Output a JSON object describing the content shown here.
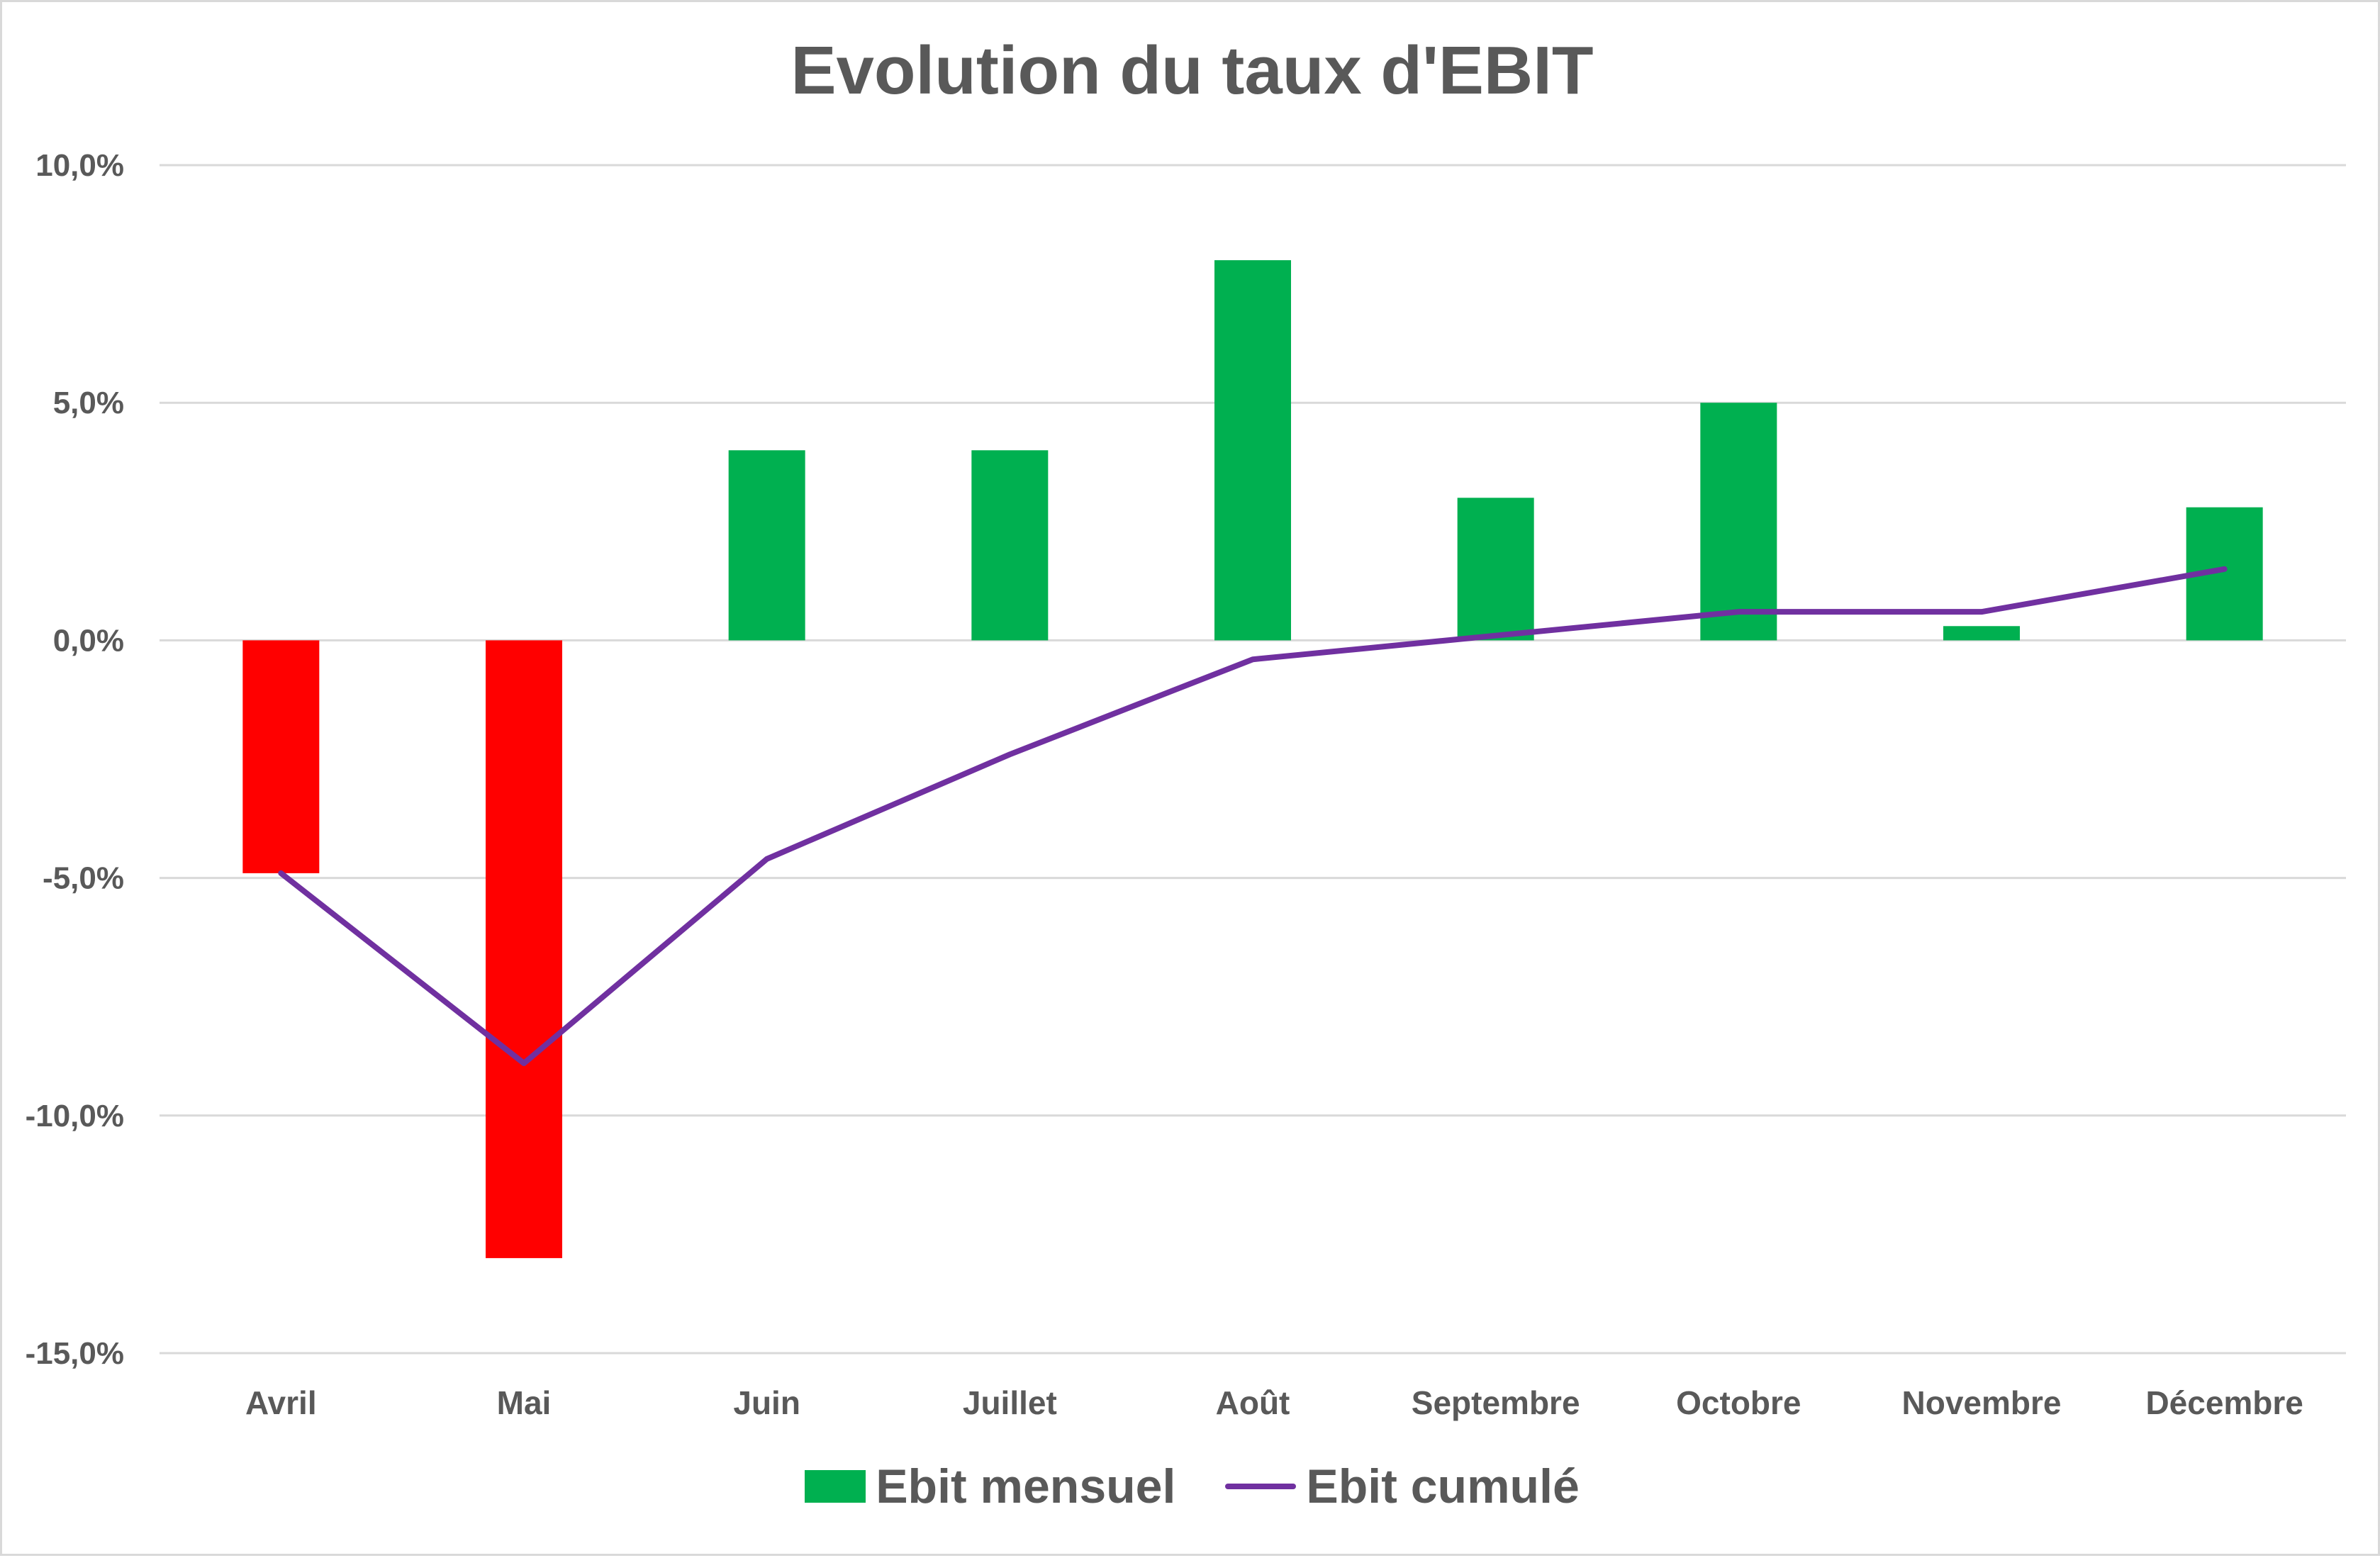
{
  "chart_data": {
    "type": "bar",
    "title": "Evolution du taux d'EBIT",
    "categories": [
      "Avril",
      "Mai",
      "Juin",
      "Juillet",
      "Août",
      "Septembre",
      "Octobre",
      "Novembre",
      "Décembre"
    ],
    "series": [
      {
        "name": "Ebit mensuel",
        "type": "bar",
        "values": [
          -4.9,
          -13.0,
          4.0,
          4.0,
          8.0,
          3.0,
          5.0,
          0.3,
          2.8
        ],
        "color": "#00b050",
        "negative_color": "#ff0000"
      },
      {
        "name": "Ebit cumulé",
        "type": "line",
        "values": [
          -4.9,
          -8.9,
          -4.6,
          -2.4,
          -0.4,
          0.1,
          0.6,
          0.6,
          1.5
        ],
        "color": "#7030a0"
      }
    ],
    "ylim": [
      -15,
      10
    ],
    "yticks": [
      10,
      5,
      0,
      -5,
      -10,
      -15
    ],
    "ytick_labels": [
      "10,0%",
      "5,0%",
      "0,0%",
      "-5,0%",
      "-10,0%",
      "-15,0%"
    ],
    "xlabel": "",
    "ylabel": "",
    "grid": true,
    "gridline_color": "#d9d9d9",
    "legend_position": "bottom"
  }
}
